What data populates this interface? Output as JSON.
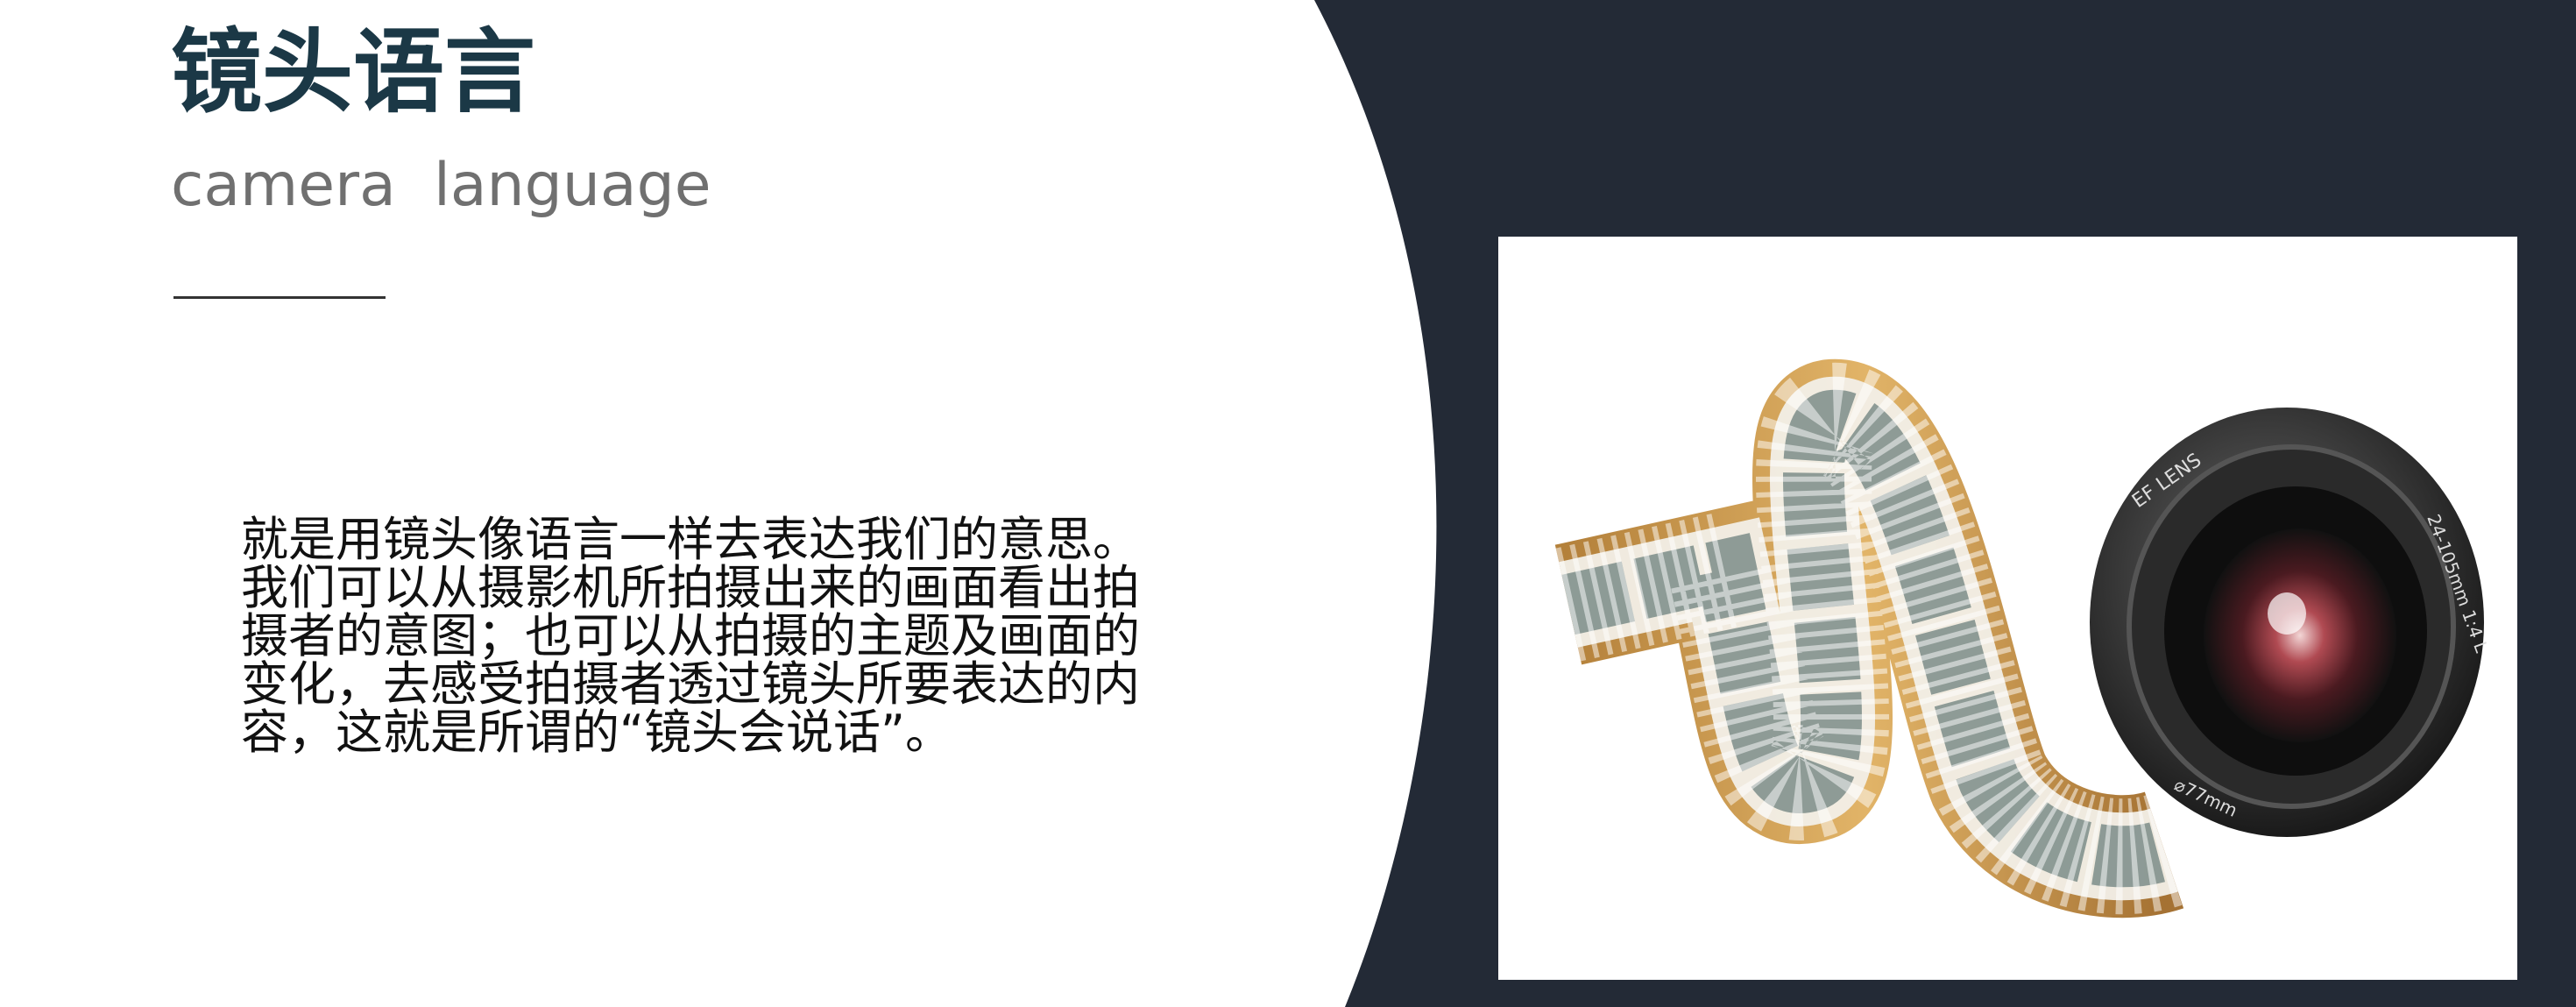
{
  "slide": {
    "title": "镜头语言",
    "subtitle": "camera  language",
    "body_lines": [
      "就是用镜头像语言一样去表达我们的意思。",
      "我们可以从摄影机所拍摄出来的画面看出拍",
      "摄者的意图；也可以从拍摄的主题及画面的",
      "变化，去感受拍摄者透过镜头所要表达的内",
      "容，这就是所谓的“镜头会说话”。"
    ]
  },
  "image": {
    "lens_text_top": "EF LENS",
    "lens_text_side": "24-105mm 1:4 L",
    "lens_text_bottom": "⌀77mm"
  },
  "colors": {
    "dark_panel": "#232a36",
    "title": "#1b3846",
    "subtitle": "#707070",
    "film_gold": "#c8923e"
  }
}
